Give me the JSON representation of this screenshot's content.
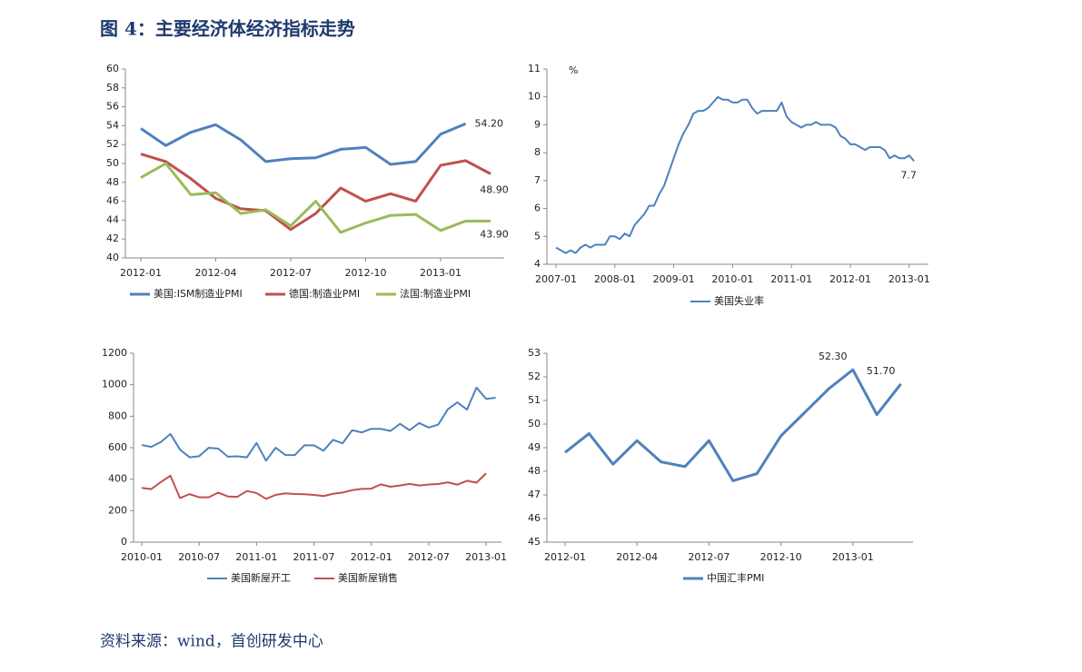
{
  "title": "图 4：主要经济体经济指标走势",
  "source": "资料来源：wind，首创研发中心",
  "chart_data": [
    {
      "type": "line",
      "categories": [
        "2012-01",
        null,
        null,
        "2012-04",
        null,
        null,
        "2012-07",
        null,
        null,
        "2012-10",
        null,
        null,
        "2013-01",
        null,
        null
      ],
      "ylim": [
        40,
        60
      ],
      "yticks": [
        40,
        42,
        44,
        46,
        48,
        50,
        52,
        54,
        56,
        58,
        60
      ],
      "series": [
        {
          "name": "美国:ISM制造业PMI",
          "color": "#4f81bd",
          "values": [
            53.7,
            51.9,
            53.3,
            54.1,
            52.5,
            50.2,
            50.5,
            50.6,
            51.5,
            51.7,
            49.9,
            50.2,
            53.1,
            54.2,
            null
          ],
          "value_labels": [
            null,
            null,
            null,
            null,
            null,
            null,
            null,
            null,
            null,
            null,
            null,
            null,
            null,
            "54.20",
            null
          ]
        },
        {
          "name": "德国:制造业PMI",
          "color": "#c0504d",
          "values": [
            51.0,
            50.2,
            48.4,
            46.3,
            45.2,
            45.0,
            43.0,
            44.7,
            47.4,
            46.0,
            46.8,
            46.0,
            49.8,
            50.3,
            48.9
          ],
          "value_labels": [
            null,
            null,
            null,
            null,
            null,
            null,
            null,
            null,
            null,
            null,
            null,
            null,
            null,
            null,
            "48.90"
          ]
        },
        {
          "name": "法国:制造业PMI",
          "color": "#9bbb59",
          "values": [
            48.5,
            50.0,
            46.7,
            46.9,
            44.7,
            45.1,
            43.4,
            46.0,
            42.7,
            43.7,
            44.5,
            44.6,
            42.9,
            43.9,
            43.9
          ],
          "value_labels": [
            null,
            null,
            null,
            null,
            null,
            null,
            null,
            null,
            null,
            null,
            null,
            null,
            null,
            null,
            "43.90"
          ]
        }
      ]
    },
    {
      "type": "line",
      "y_unit": "%",
      "categories": [
        "2007-01",
        null,
        null,
        null,
        null,
        null,
        null,
        null,
        null,
        null,
        null,
        null,
        "2008-01",
        null,
        null,
        null,
        null,
        null,
        null,
        null,
        null,
        null,
        null,
        null,
        "2009-01",
        null,
        null,
        null,
        null,
        null,
        null,
        null,
        null,
        null,
        null,
        null,
        "2010-01",
        null,
        null,
        null,
        null,
        null,
        null,
        null,
        null,
        null,
        null,
        null,
        "2011-01",
        null,
        null,
        null,
        null,
        null,
        null,
        null,
        null,
        null,
        null,
        null,
        "2012-01",
        null,
        null,
        null,
        null,
        null,
        null,
        null,
        null,
        null,
        null,
        null,
        "2013-01",
        null
      ],
      "ylim": [
        4,
        11
      ],
      "yticks": [
        4,
        5,
        6,
        7,
        8,
        9,
        10,
        11
      ],
      "series": [
        {
          "name": "美国失业率",
          "color": "#4f81bd",
          "values": [
            4.6,
            4.5,
            4.4,
            4.5,
            4.4,
            4.6,
            4.7,
            4.6,
            4.7,
            4.7,
            4.7,
            5.0,
            5.0,
            4.9,
            5.1,
            5.0,
            5.4,
            5.6,
            5.8,
            6.1,
            6.1,
            6.5,
            6.8,
            7.3,
            7.8,
            8.3,
            8.7,
            9.0,
            9.4,
            9.5,
            9.5,
            9.6,
            9.8,
            10.0,
            9.9,
            9.9,
            9.8,
            9.8,
            9.9,
            9.9,
            9.6,
            9.4,
            9.5,
            9.5,
            9.5,
            9.5,
            9.8,
            9.3,
            9.1,
            9.0,
            8.9,
            9.0,
            9.0,
            9.1,
            9.0,
            9.0,
            9.0,
            8.9,
            8.6,
            8.5,
            8.3,
            8.3,
            8.2,
            8.1,
            8.2,
            8.2,
            8.2,
            8.1,
            7.8,
            7.9,
            7.8,
            7.8,
            7.9,
            7.7
          ]
        }
      ]
    },
    {
      "type": "line",
      "categories": [
        "2010-01",
        null,
        null,
        null,
        null,
        null,
        "2010-07",
        null,
        null,
        null,
        null,
        null,
        "2011-01",
        null,
        null,
        null,
        null,
        null,
        "2011-07",
        null,
        null,
        null,
        null,
        null,
        "2012-01",
        null,
        null,
        null,
        null,
        null,
        "2012-07",
        null,
        null,
        null,
        null,
        null,
        "2013-01",
        null
      ],
      "ylim": [
        0,
        1200
      ],
      "yticks": [
        0,
        200,
        400,
        600,
        800,
        1000,
        1200
      ],
      "series": [
        {
          "name": "美国新屋开工",
          "color": "#4f81bd",
          "values": [
            617,
            605,
            636,
            687,
            588,
            539,
            546,
            599,
            594,
            543,
            545,
            539,
            630,
            518,
            600,
            554,
            553,
            615,
            615,
            581,
            650,
            628,
            711,
            697,
            720,
            720,
            706,
            752,
            711,
            757,
            728,
            747,
            844,
            888,
            842,
            982,
            910,
            917
          ]
        },
        {
          "name": "美国新屋销售",
          "color": "#c0504d",
          "values": [
            345,
            337,
            382,
            422,
            280,
            305,
            285,
            285,
            315,
            290,
            288,
            325,
            312,
            275,
            300,
            310,
            306,
            304,
            300,
            293,
            307,
            315,
            330,
            338,
            340,
            367,
            352,
            360,
            370,
            360,
            366,
            369,
            380,
            365,
            390,
            378,
            437,
            null
          ]
        }
      ]
    },
    {
      "type": "line",
      "categories": [
        "2012-01",
        null,
        null,
        "2012-04",
        null,
        null,
        "2012-07",
        null,
        null,
        "2012-10",
        null,
        null,
        "2013-01",
        null,
        null
      ],
      "ylim": [
        45,
        53
      ],
      "yticks": [
        45,
        46,
        47,
        48,
        49,
        50,
        51,
        52,
        53
      ],
      "series": [
        {
          "name": "中国汇丰PMI",
          "color": "#4f81bd",
          "values": [
            48.8,
            49.6,
            48.3,
            49.3,
            48.4,
            48.2,
            49.3,
            47.6,
            47.9,
            49.5,
            50.5,
            51.5,
            52.3,
            50.4,
            51.7
          ],
          "value_labels": [
            null,
            null,
            null,
            null,
            null,
            null,
            null,
            null,
            null,
            null,
            null,
            null,
            "52.30",
            null,
            "51.70"
          ]
        }
      ]
    }
  ]
}
